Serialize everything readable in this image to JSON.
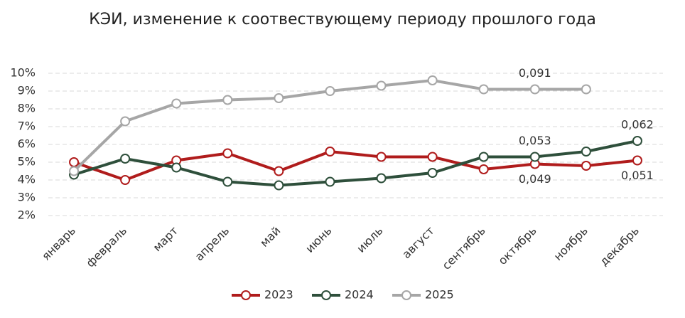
{
  "chart_data": {
    "type": "line",
    "title": "КЭИ, изменение к соотвествующему периоду прошлого года",
    "categories": [
      "январь",
      "февраль",
      "март",
      "апрель",
      "май",
      "июнь",
      "июль",
      "август",
      "сентябрь",
      "октябрь",
      "ноябрь",
      "декабрь"
    ],
    "series": [
      {
        "name": "2023",
        "color": "#b01c1c",
        "values": [
          5.0,
          4.0,
          5.1,
          5.5,
          4.5,
          5.6,
          5.3,
          5.3,
          4.6,
          4.9,
          4.8,
          5.1
        ],
        "value_labels": [
          null,
          null,
          null,
          null,
          null,
          null,
          null,
          null,
          null,
          "0,049",
          null,
          "0,051"
        ]
      },
      {
        "name": "2024",
        "color": "#2e4f3b",
        "values": [
          4.3,
          5.2,
          4.7,
          3.9,
          3.7,
          3.9,
          4.1,
          4.4,
          5.3,
          5.3,
          5.6,
          6.2
        ],
        "value_labels": [
          null,
          null,
          null,
          null,
          null,
          null,
          null,
          null,
          null,
          "0,053",
          null,
          "0,062"
        ]
      },
      {
        "name": "2025",
        "color": "#a6a6a6",
        "values": [
          4.5,
          7.3,
          8.3,
          8.5,
          8.6,
          9.0,
          9.3,
          9.6,
          9.1,
          9.1,
          9.1,
          null
        ],
        "value_labels": [
          null,
          null,
          null,
          null,
          null,
          null,
          null,
          null,
          null,
          "0,091",
          null,
          null
        ]
      }
    ],
    "ylim": [
      2,
      10
    ],
    "yticks": [
      {
        "value": 2,
        "label": "2%"
      },
      {
        "value": 3,
        "label": "3%"
      },
      {
        "value": 4,
        "label": "4%"
      },
      {
        "value": 5,
        "label": "5%"
      },
      {
        "value": 6,
        "label": "6%"
      },
      {
        "value": 7,
        "label": "7%"
      },
      {
        "value": 8,
        "label": "8%"
      },
      {
        "value": 9,
        "label": "9%"
      },
      {
        "value": 10,
        "label": "10%"
      }
    ],
    "grid": true,
    "legend": "bottom"
  }
}
